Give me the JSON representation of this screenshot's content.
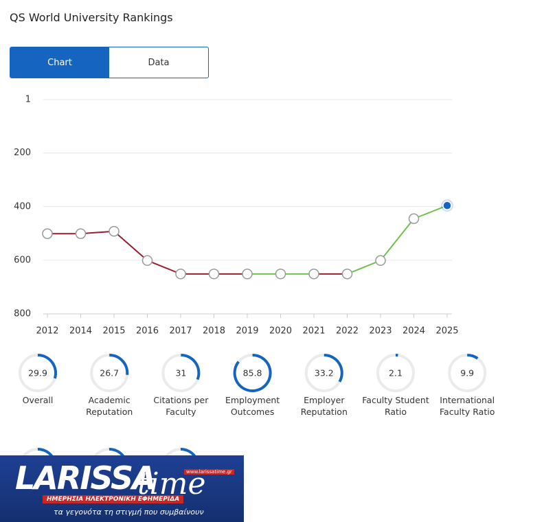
{
  "header": {
    "title": "QS World University Rankings"
  },
  "tabs": [
    "Chart",
    "Data"
  ],
  "active_tab": 0,
  "chart_data": {
    "type": "line",
    "categories": [
      "2012",
      "2014",
      "2015",
      "2016",
      "2017",
      "2018",
      "2019",
      "2020",
      "2021",
      "2022",
      "2023",
      "2024",
      "2025"
    ],
    "values": [
      501,
      501,
      492,
      601,
      651,
      651,
      651,
      651,
      651,
      651,
      601,
      445,
      396
    ],
    "segment_colors": [
      "#9b1c2e",
      "#9b1c2e",
      "#9b1c2e",
      "#9b1c2e",
      "#9b1c2e",
      "#9b1c2e",
      "#6cc24a",
      "#6cc24a",
      "#9b1c2e",
      "#6cc24a",
      "#6cc24a",
      "#6cc24a"
    ],
    "current_color": "#1565c0",
    "ylim": [
      1,
      800
    ],
    "y_inverted": true,
    "yticks": [
      1,
      200,
      400,
      600,
      800
    ],
    "grid": true
  },
  "scores": [
    {
      "label": "Overall",
      "value": 29.9
    },
    {
      "label": "Academic Reputation",
      "value": 26.7
    },
    {
      "label": "Citations per Faculty",
      "value": 31
    },
    {
      "label": "Employment Outcomes",
      "value": 85.8
    },
    {
      "label": "Employer Reputation",
      "value": 33.2
    },
    {
      "label": "Faculty Student Ratio",
      "value": 2.1
    },
    {
      "label": "International Faculty Ratio",
      "value": 9.9
    }
  ],
  "score_max": 100,
  "overlay": {
    "brand_1": "LARISSA",
    "brand_2": "time",
    "url": "www.larissatime.gr",
    "banner": "ΗΜΕΡΗΣΙΑ ΗΛΕΚΤΡΟΝΙΚΗ ΕΦΗΜΕΡΙΔΑ",
    "slogan": "τα γεγονότα τη στιγμή που συμβαίνουν"
  }
}
